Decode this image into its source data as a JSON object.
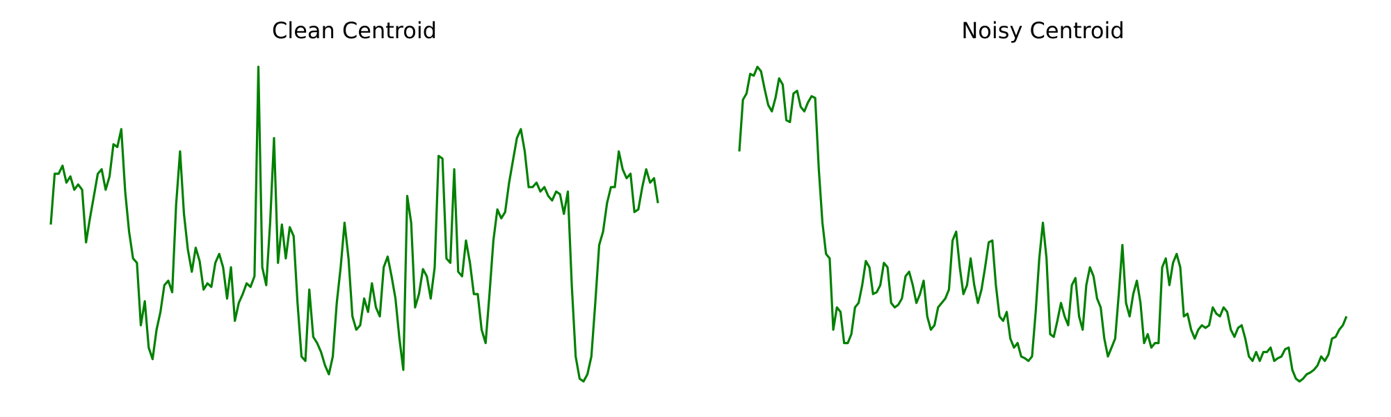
{
  "chart_data": [
    {
      "type": "line",
      "title": "Clean Centroid",
      "color": "#008000",
      "ylim": [
        0,
        400
      ],
      "values": [
        198,
        255,
        255,
        264,
        245,
        252,
        237,
        243,
        237,
        178,
        205,
        230,
        255,
        260,
        237,
        252,
        288,
        285,
        305,
        235,
        190,
        160,
        155,
        85,
        112,
        60,
        47,
        80,
        100,
        130,
        135,
        122,
        220,
        280,
        210,
        170,
        145,
        172,
        157,
        125,
        132,
        128,
        155,
        165,
        150,
        115,
        150,
        90,
        110,
        120,
        132,
        128,
        140,
        375,
        150,
        130,
        200,
        295,
        155,
        198,
        160,
        195,
        185,
        110,
        50,
        45,
        125,
        72,
        65,
        55,
        40,
        30,
        50,
        110,
        150,
        200,
        160,
        95,
        80,
        85,
        115,
        100,
        132,
        105,
        95,
        150,
        162,
        140,
        115,
        70,
        35,
        230,
        200,
        105,
        120,
        148,
        140,
        115,
        150,
        275,
        272,
        160,
        155,
        260,
        145,
        140,
        180,
        155,
        120,
        120,
        80,
        65,
        120,
        180,
        215,
        205,
        212,
        245,
        270,
        295,
        305,
        280,
        240,
        240,
        245,
        235,
        240,
        230,
        225,
        235,
        232,
        210,
        235,
        130,
        50,
        25,
        22,
        30,
        50,
        110,
        175,
        190,
        222,
        240,
        240,
        280,
        260,
        250,
        255,
        212,
        215,
        240,
        260,
        245,
        250,
        222
      ]
    },
    {
      "type": "line",
      "title": "Noisy Centroid",
      "color": "#008000",
      "ylim": [
        0,
        400
      ],
      "values": [
        280,
        338,
        345,
        367,
        365,
        375,
        370,
        350,
        332,
        325,
        340,
        362,
        355,
        315,
        313,
        345,
        348,
        330,
        325,
        335,
        342,
        340,
        260,
        200,
        165,
        160,
        80,
        105,
        100,
        65,
        65,
        75,
        105,
        110,
        130,
        157,
        150,
        120,
        122,
        130,
        155,
        150,
        110,
        105,
        108,
        115,
        140,
        145,
        130,
        110,
        120,
        135,
        95,
        80,
        85,
        105,
        110,
        115,
        125,
        180,
        190,
        150,
        120,
        130,
        160,
        130,
        110,
        125,
        150,
        178,
        180,
        130,
        95,
        90,
        100,
        70,
        60,
        65,
        50,
        48,
        45,
        50,
        100,
        160,
        200,
        160,
        75,
        72,
        90,
        110,
        95,
        85,
        130,
        138,
        95,
        80,
        130,
        150,
        140,
        115,
        105,
        70,
        50,
        60,
        70,
        120,
        175,
        110,
        95,
        120,
        135,
        110,
        65,
        75,
        60,
        65,
        65,
        150,
        160,
        130,
        155,
        165,
        150,
        95,
        98,
        80,
        70,
        80,
        85,
        82,
        85,
        105,
        98,
        95,
        105,
        100,
        80,
        72,
        82,
        85,
        70,
        50,
        45,
        55,
        45,
        55,
        55,
        60,
        45,
        48,
        50,
        58,
        60,
        35,
        25,
        22,
        25,
        30,
        32,
        35,
        40,
        50,
        45,
        52,
        70,
        72,
        80,
        85,
        95
      ]
    }
  ]
}
